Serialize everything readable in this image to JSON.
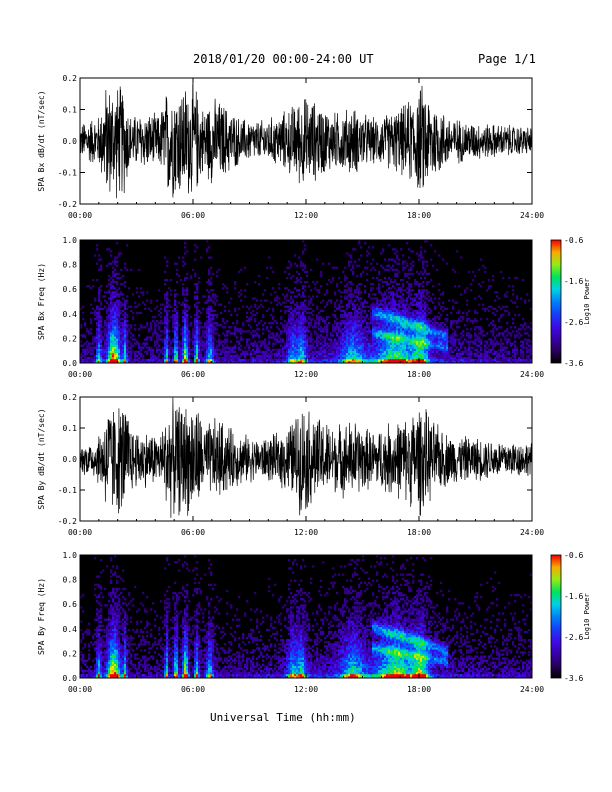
{
  "header": {
    "title": "2018/01/20  00:00-24:00 UT",
    "page": "Page 1/1"
  },
  "xlabel": "Universal Time (hh:mm)",
  "colors": {
    "trace": "#000000",
    "background": "#000000"
  },
  "chart_data": [
    {
      "type": "line",
      "ylabel": "SPA Bx dB/dt (nT/sec)",
      "xlim": [
        0,
        24
      ],
      "ylim": [
        -0.2,
        0.2
      ],
      "x_ticks": [
        "00:00",
        "06:00",
        "12:00",
        "18:00",
        "24:00"
      ],
      "y_ticks": [
        "-0.2",
        "-0.1",
        "0.0",
        "0.1",
        "0.2"
      ],
      "envelope": [
        {
          "t": 0,
          "a": 0.06
        },
        {
          "t": 0.5,
          "a": 0.08
        },
        {
          "t": 1.0,
          "a": 0.09
        },
        {
          "t": 1.4,
          "a": 0.2
        },
        {
          "t": 2.3,
          "a": 0.2
        },
        {
          "t": 2.7,
          "a": 0.09
        },
        {
          "t": 3.5,
          "a": 0.1
        },
        {
          "t": 4.2,
          "a": 0.09
        },
        {
          "t": 4.7,
          "a": 0.2
        },
        {
          "t": 6.1,
          "a": 0.2
        },
        {
          "t": 6.5,
          "a": 0.12
        },
        {
          "t": 7.0,
          "a": 0.15
        },
        {
          "t": 7.5,
          "a": 0.14
        },
        {
          "t": 8.5,
          "a": 0.08
        },
        {
          "t": 9.5,
          "a": 0.07
        },
        {
          "t": 10.5,
          "a": 0.09
        },
        {
          "t": 11.2,
          "a": 0.12
        },
        {
          "t": 11.8,
          "a": 0.16
        },
        {
          "t": 12.5,
          "a": 0.14
        },
        {
          "t": 13.5,
          "a": 0.1
        },
        {
          "t": 14.5,
          "a": 0.12
        },
        {
          "t": 15.5,
          "a": 0.08
        },
        {
          "t": 16.5,
          "a": 0.1
        },
        {
          "t": 17.3,
          "a": 0.13
        },
        {
          "t": 18.2,
          "a": 0.2
        },
        {
          "t": 18.7,
          "a": 0.15
        },
        {
          "t": 19.5,
          "a": 0.09
        },
        {
          "t": 20.5,
          "a": 0.07
        },
        {
          "t": 22,
          "a": 0.06
        },
        {
          "t": 24,
          "a": 0.05
        }
      ]
    },
    {
      "type": "heatmap",
      "ylabel": "SPA Bx Freq (Hz)",
      "xlim": [
        0,
        24
      ],
      "ylim": [
        0,
        1.0
      ],
      "x_ticks": [
        "00:00",
        "06:00",
        "12:00",
        "18:00",
        "24:00"
      ],
      "y_ticks": [
        "0.0",
        "0.2",
        "0.4",
        "0.6",
        "0.8",
        "1.0"
      ],
      "colorbar": {
        "label": "Log10 Power",
        "range": [
          -3.6,
          -0.6
        ],
        "ticks": [
          "-0.6",
          "-1.6",
          "-2.6",
          "-3.6"
        ]
      },
      "bursts": [
        {
          "t": 1.0,
          "w": 0.15,
          "s": 0.55
        },
        {
          "t": 1.8,
          "w": 0.35,
          "s": 1.0
        },
        {
          "t": 2.4,
          "w": 0.1,
          "s": 0.6
        },
        {
          "t": 4.6,
          "w": 0.1,
          "s": 0.6
        },
        {
          "t": 5.1,
          "w": 0.12,
          "s": 0.7
        },
        {
          "t": 5.6,
          "w": 0.15,
          "s": 0.85
        },
        {
          "t": 6.2,
          "w": 0.12,
          "s": 0.7
        },
        {
          "t": 6.9,
          "w": 0.2,
          "s": 0.55
        },
        {
          "t": 11.3,
          "w": 0.3,
          "s": 0.45
        },
        {
          "t": 11.8,
          "w": 0.25,
          "s": 0.5
        },
        {
          "t": 14.5,
          "w": 0.6,
          "s": 0.45
        },
        {
          "t": 16.8,
          "w": 1.0,
          "s": 0.6
        },
        {
          "t": 18.1,
          "w": 0.4,
          "s": 0.55
        }
      ]
    },
    {
      "type": "line",
      "ylabel": "SPA By dB/dt (nT/sec)",
      "xlim": [
        0,
        24
      ],
      "ylim": [
        -0.2,
        0.2
      ],
      "x_ticks": [
        "00:00",
        "06:00",
        "12:00",
        "18:00",
        "24:00"
      ],
      "y_ticks": [
        "-0.2",
        "-0.1",
        "0.0",
        "0.1",
        "0.2"
      ],
      "envelope": [
        {
          "t": 0,
          "a": 0.05
        },
        {
          "t": 0.8,
          "a": 0.07
        },
        {
          "t": 1.2,
          "a": 0.12
        },
        {
          "t": 1.4,
          "a": 0.2
        },
        {
          "t": 2.4,
          "a": 0.2
        },
        {
          "t": 2.8,
          "a": 0.11
        },
        {
          "t": 3.5,
          "a": 0.1
        },
        {
          "t": 4.3,
          "a": 0.09
        },
        {
          "t": 4.7,
          "a": 0.2
        },
        {
          "t": 6.2,
          "a": 0.2
        },
        {
          "t": 6.6,
          "a": 0.12
        },
        {
          "t": 7.3,
          "a": 0.15
        },
        {
          "t": 8.2,
          "a": 0.1
        },
        {
          "t": 9.5,
          "a": 0.07
        },
        {
          "t": 10.5,
          "a": 0.09
        },
        {
          "t": 11.3,
          "a": 0.14
        },
        {
          "t": 11.8,
          "a": 0.2
        },
        {
          "t": 12.6,
          "a": 0.15
        },
        {
          "t": 13.5,
          "a": 0.12
        },
        {
          "t": 14.5,
          "a": 0.14
        },
        {
          "t": 15.5,
          "a": 0.1
        },
        {
          "t": 16.5,
          "a": 0.13
        },
        {
          "t": 17.3,
          "a": 0.15
        },
        {
          "t": 18.1,
          "a": 0.2
        },
        {
          "t": 18.8,
          "a": 0.13
        },
        {
          "t": 19.6,
          "a": 0.09
        },
        {
          "t": 20.5,
          "a": 0.08
        },
        {
          "t": 22,
          "a": 0.07
        },
        {
          "t": 24,
          "a": 0.06
        }
      ]
    },
    {
      "type": "heatmap",
      "ylabel": "SPA By Freq (Hz)",
      "xlim": [
        0,
        24
      ],
      "ylim": [
        0,
        1.0
      ],
      "x_ticks": [
        "00:00",
        "06:00",
        "12:00",
        "18:00",
        "24:00"
      ],
      "y_ticks": [
        "0.0",
        "0.2",
        "0.4",
        "0.6",
        "0.8",
        "1.0"
      ],
      "colorbar": {
        "label": "Log10 Power",
        "range": [
          -3.6,
          -0.6
        ],
        "ticks": [
          "-0.6",
          "-1.6",
          "-2.6",
          "-3.6"
        ]
      },
      "bursts": [
        {
          "t": 1.0,
          "w": 0.15,
          "s": 0.55
        },
        {
          "t": 1.8,
          "w": 0.35,
          "s": 1.0
        },
        {
          "t": 2.4,
          "w": 0.1,
          "s": 0.6
        },
        {
          "t": 4.6,
          "w": 0.1,
          "s": 0.65
        },
        {
          "t": 5.1,
          "w": 0.12,
          "s": 0.75
        },
        {
          "t": 5.6,
          "w": 0.15,
          "s": 0.9
        },
        {
          "t": 6.2,
          "w": 0.12,
          "s": 0.7
        },
        {
          "t": 6.9,
          "w": 0.2,
          "s": 0.55
        },
        {
          "t": 11.3,
          "w": 0.3,
          "s": 0.5
        },
        {
          "t": 11.8,
          "w": 0.25,
          "s": 0.55
        },
        {
          "t": 14.5,
          "w": 0.6,
          "s": 0.5
        },
        {
          "t": 16.8,
          "w": 1.0,
          "s": 0.65
        },
        {
          "t": 18.1,
          "w": 0.4,
          "s": 0.6
        }
      ]
    }
  ]
}
